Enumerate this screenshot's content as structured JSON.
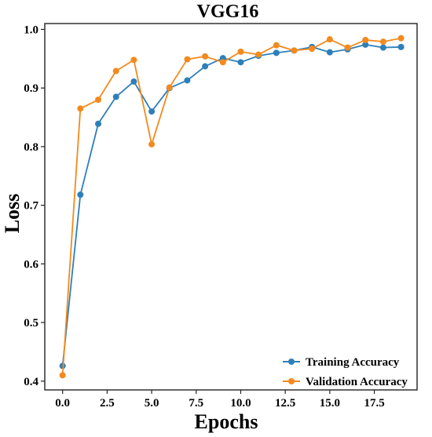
{
  "chart_data": {
    "type": "line",
    "title": "VGG16",
    "xlabel": "Epochs",
    "ylabel": "Loss",
    "xlim": [
      -1.0,
      19.9
    ],
    "ylim": [
      0.385,
      1.01
    ],
    "xticks": [
      0.0,
      2.5,
      5.0,
      7.5,
      10.0,
      12.5,
      15.0,
      17.5
    ],
    "xtick_labels": [
      "0.0",
      "2.5",
      "5.0",
      "7.5",
      "10.0",
      "12.5",
      "15.0",
      "17.5"
    ],
    "yticks": [
      0.4,
      0.5,
      0.6,
      0.7,
      0.8,
      0.9,
      1.0
    ],
    "ytick_labels": [
      "0.4",
      "0.5",
      "0.6",
      "0.7",
      "0.8",
      "0.9",
      "1.0"
    ],
    "grid": false,
    "legend_position": "bottom-right",
    "x": [
      0,
      1,
      2,
      3,
      4,
      5,
      6,
      7,
      8,
      9,
      10,
      11,
      12,
      13,
      14,
      15,
      16,
      17,
      18,
      19
    ],
    "series": [
      {
        "name": "Training Accuracy",
        "color": "#2e7fb8",
        "values": [
          0.426,
          0.718,
          0.839,
          0.885,
          0.911,
          0.86,
          0.9,
          0.913,
          0.937,
          0.951,
          0.944,
          0.955,
          0.96,
          0.964,
          0.97,
          0.961,
          0.966,
          0.974,
          0.969,
          0.97
        ]
      },
      {
        "name": "Validation Accuracy",
        "color": "#f28a1e",
        "values": [
          0.41,
          0.865,
          0.88,
          0.929,
          0.948,
          0.804,
          0.901,
          0.949,
          0.954,
          0.944,
          0.962,
          0.957,
          0.973,
          0.964,
          0.967,
          0.983,
          0.969,
          0.982,
          0.979,
          0.985
        ]
      }
    ]
  }
}
